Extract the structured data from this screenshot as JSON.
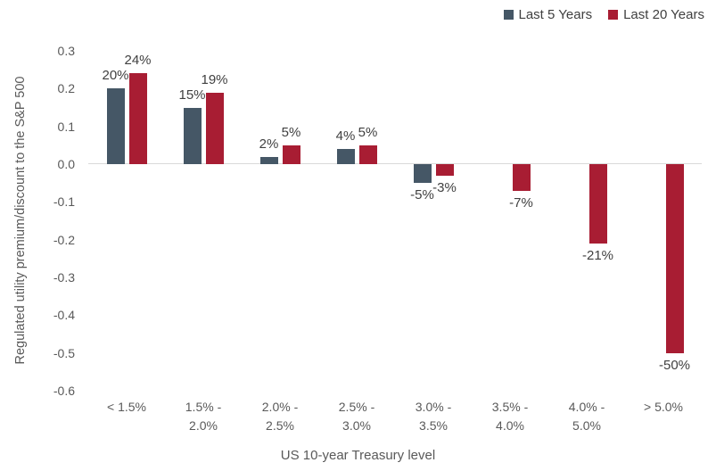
{
  "chart_data": {
    "type": "bar",
    "title": "",
    "xlabel": "US 10-year Treasury level",
    "ylabel": "Regulated utility premium/discount to the S&P 500",
    "ylim": [
      -0.6,
      0.3
    ],
    "ytick_step": 0.1,
    "yticks": [
      "0.3",
      "0.2",
      "0.1",
      "0.0",
      "-0.1",
      "-0.2",
      "-0.3",
      "-0.4",
      "-0.5",
      "-0.6"
    ],
    "grid": false,
    "legend_position": "top-right",
    "background_color": "#ffffff",
    "axis_line_color": "#d9d9d9",
    "tick_label_color": "#595959",
    "data_label_color": "#404040",
    "categories": [
      "< 1.5%",
      "1.5% - 2.0%",
      "2.0% - 2.5%",
      "2.5% - 3.0%",
      "3.0% - 3.5%",
      "3.5% - 4.0%",
      "4.0% - 5.0%",
      "> 5.0%"
    ],
    "categories_lines": [
      [
        "< 1.5%"
      ],
      [
        "1.5% -",
        "2.0%"
      ],
      [
        "2.0% -",
        "2.5%"
      ],
      [
        "2.5% -",
        "3.0%"
      ],
      [
        "3.0% -",
        "3.5%"
      ],
      [
        "3.5% -",
        "4.0%"
      ],
      [
        "4.0% -",
        "5.0%"
      ],
      [
        "> 5.0%"
      ]
    ],
    "series": [
      {
        "name": "Last 5 Years",
        "color": "#455766",
        "values": [
          0.2,
          0.15,
          0.02,
          0.04,
          -0.05,
          null,
          null,
          null
        ],
        "labels": [
          "20%",
          "15%",
          "2%",
          "4%",
          "-5%",
          null,
          null,
          null
        ]
      },
      {
        "name": "Last 20 Years",
        "color": "#a81d33",
        "values": [
          0.24,
          0.19,
          0.05,
          0.05,
          -0.03,
          -0.07,
          -0.21,
          -0.5
        ],
        "labels": [
          "24%",
          "19%",
          "5%",
          "5%",
          "-3%",
          "-7%",
          "-21%",
          "-50%"
        ]
      }
    ]
  }
}
